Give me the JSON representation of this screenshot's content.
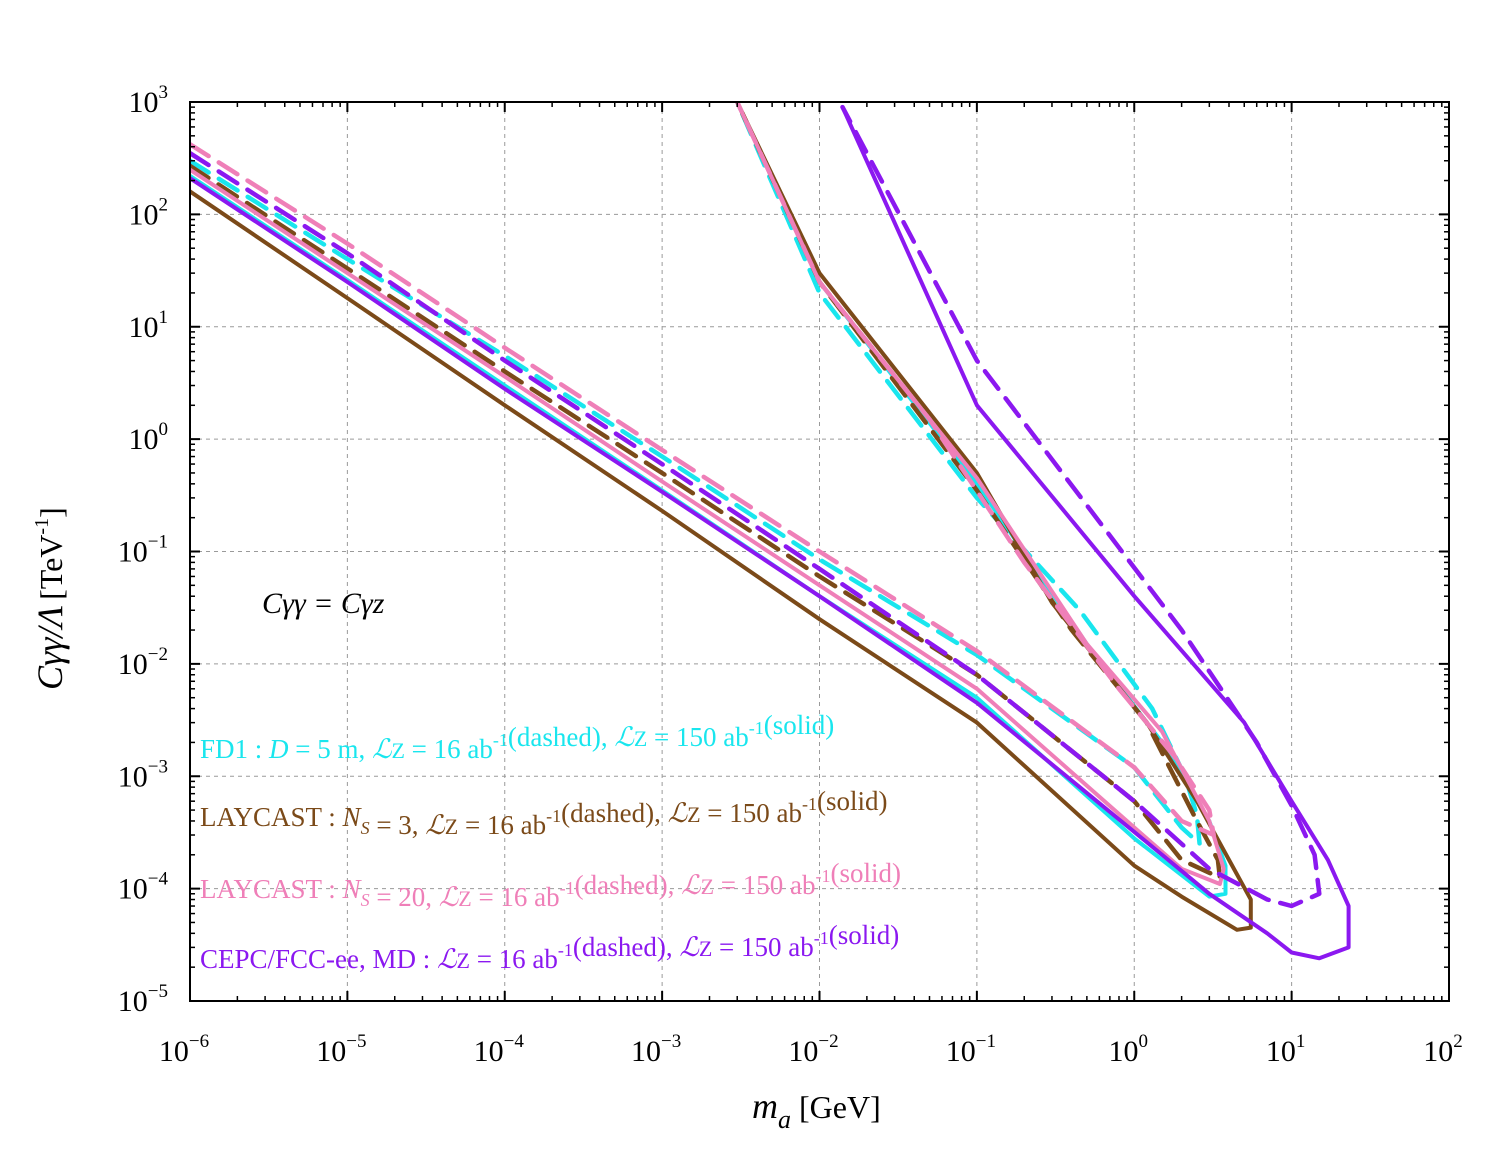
{
  "chart_data": {
    "type": "line",
    "xscale": "log",
    "yscale": "log",
    "xlim": [
      1e-06,
      100
    ],
    "ylim": [
      1e-05,
      1000
    ],
    "grid": true,
    "xlabel": {
      "main": "m",
      "sub": "a",
      "unit": "[GeV]"
    },
    "ylabel": {
      "main": "Cγγ/Λ",
      "unit": "[TeV",
      "unit_sup": "-1",
      "unit_close": "]"
    },
    "xticks": [
      {
        "base": "10",
        "exp": "−6"
      },
      {
        "base": "10",
        "exp": "−5"
      },
      {
        "base": "10",
        "exp": "−4"
      },
      {
        "base": "10",
        "exp": "−3"
      },
      {
        "base": "10",
        "exp": "−2"
      },
      {
        "base": "10",
        "exp": "−1"
      },
      {
        "base": "10",
        "exp": "0"
      },
      {
        "base": "10",
        "exp": "1"
      },
      {
        "base": "10",
        "exp": "2"
      }
    ],
    "yticks": [
      {
        "base": "10",
        "exp": "−5"
      },
      {
        "base": "10",
        "exp": "−4"
      },
      {
        "base": "10",
        "exp": "−3"
      },
      {
        "base": "10",
        "exp": "−2"
      },
      {
        "base": "10",
        "exp": "−1"
      },
      {
        "base": "10",
        "exp": "0"
      },
      {
        "base": "10",
        "exp": "1"
      },
      {
        "base": "10",
        "exp": "2"
      },
      {
        "base": "10",
        "exp": "3"
      }
    ],
    "annotation": "Cγγ = Cγz",
    "colors": {
      "cyan": "#19e6ee",
      "brown": "#7b4a19",
      "pink": "#ef7fb8",
      "violet": "#8b18f0"
    },
    "legend": [
      {
        "name": "FD1",
        "color": "#19e6ee",
        "text": "FD1 : D = 5 m,  ℒZ = 16 ab-1(dashed),  ℒZ = 150 ab-1(solid)"
      },
      {
        "name": "LAYCAST Ns=3",
        "color": "#7b4a19",
        "text": "LAYCAST : NS = 3, ℒZ = 16 ab-1(dashed),  ℒZ = 150 ab-1(solid)"
      },
      {
        "name": "LAYCAST Ns=20",
        "color": "#ef7fb8",
        "text": "LAYCAST : NS = 20, ℒZ = 16 ab-1(dashed), ℒZ = 150 ab-1(solid)"
      },
      {
        "name": "CEPC/FCC-ee MD",
        "color": "#8b18f0",
        "text": "CEPC/FCC-ee, MD :  ℒZ = 16 ab-1(dashed),  ℒZ = 150 ab-1(solid)"
      }
    ],
    "series": [
      {
        "name": "FD1 dashed (16 ab-1)",
        "color": "#19e6ee",
        "style": "dashed",
        "points": [
          [
            1e-06,
            300
          ],
          [
            1e-05,
            40
          ],
          [
            0.0001,
            5.5
          ],
          [
            0.001,
            0.7
          ],
          [
            0.01,
            0.085
          ],
          [
            0.1,
            0.012
          ],
          [
            1.0,
            0.0012
          ],
          [
            2.0,
            0.00035
          ],
          [
            2.6,
            0.00025
          ],
          [
            2.5,
            0.00045
          ],
          [
            2.1,
            0.001
          ],
          [
            1.3,
            0.004
          ],
          [
            0.45,
            0.03
          ],
          [
            0.1,
            0.3
          ],
          [
            0.01,
            20
          ],
          [
            0.003,
            1000
          ]
        ]
      },
      {
        "name": "FD1 solid (150 ab-1)",
        "color": "#19e6ee",
        "style": "solid",
        "points": [
          [
            1e-06,
            220
          ],
          [
            1e-05,
            26
          ],
          [
            0.0001,
            3
          ],
          [
            0.001,
            0.35
          ],
          [
            0.01,
            0.04
          ],
          [
            0.1,
            0.005
          ],
          [
            1.0,
            0.00028
          ],
          [
            3.0,
            8.5e-05
          ],
          [
            3.8,
            9e-05
          ],
          [
            3.8,
            0.00016
          ],
          [
            3.0,
            0.0004
          ],
          [
            1.5,
            0.002
          ],
          [
            0.5,
            0.015
          ],
          [
            0.1,
            0.4
          ],
          [
            0.01,
            25
          ],
          [
            0.003,
            1000
          ]
        ]
      },
      {
        "name": "LAYCAST Ns=3 dashed (16 ab-1)",
        "color": "#7b4a19",
        "style": "dashed",
        "points": [
          [
            1e-06,
            270
          ],
          [
            1e-05,
            33
          ],
          [
            0.0001,
            4
          ],
          [
            0.001,
            0.5
          ],
          [
            0.01,
            0.06
          ],
          [
            0.1,
            0.008
          ],
          [
            1.0,
            0.0006
          ],
          [
            2.0,
            0.00018
          ],
          [
            3.5,
            0.000125
          ],
          [
            3.4,
            0.00018
          ],
          [
            2.5,
            0.0004
          ],
          [
            1.2,
            0.003
          ],
          [
            0.4,
            0.02
          ],
          [
            0.1,
            0.35
          ],
          [
            0.01,
            25
          ],
          [
            0.003,
            1000
          ]
        ]
      },
      {
        "name": "LAYCAST Ns=3 solid (150 ab-1)",
        "color": "#7b4a19",
        "style": "solid",
        "points": [
          [
            1e-06,
            160
          ],
          [
            1e-05,
            18
          ],
          [
            0.0001,
            2
          ],
          [
            0.001,
            0.23
          ],
          [
            0.01,
            0.025
          ],
          [
            0.1,
            0.003
          ],
          [
            1.0,
            0.00016
          ],
          [
            2.0,
            8.5e-05
          ],
          [
            4.5,
            4.3e-05
          ],
          [
            5.5,
            4.5e-05
          ],
          [
            5.5,
            8e-05
          ],
          [
            4.0,
            0.00018
          ],
          [
            2.5,
            0.0006
          ],
          [
            1.2,
            0.003
          ],
          [
            0.3,
            0.035
          ],
          [
            0.1,
            0.5
          ],
          [
            0.01,
            30
          ],
          [
            0.003,
            1000
          ]
        ]
      },
      {
        "name": "LAYCAST Ns=20 dashed (16 ab-1)",
        "color": "#ef7fb8",
        "style": "dashed",
        "points": [
          [
            1e-06,
            420
          ],
          [
            1e-05,
            55
          ],
          [
            0.0001,
            6.5
          ],
          [
            0.001,
            0.8
          ],
          [
            0.01,
            0.1
          ],
          [
            0.1,
            0.013
          ],
          [
            1.0,
            0.0012
          ],
          [
            2.0,
            0.0004
          ],
          [
            3.2,
            0.0003
          ],
          [
            3.0,
            0.0005
          ],
          [
            1.8,
            0.0015
          ],
          [
            0.8,
            0.006
          ],
          [
            0.2,
            0.08
          ],
          [
            0.05,
            1.5
          ],
          [
            0.01,
            25
          ],
          [
            0.003,
            1000
          ]
        ]
      },
      {
        "name": "LAYCAST Ns=20 solid (150 ab-1)",
        "color": "#ef7fb8",
        "style": "solid",
        "points": [
          [
            1e-06,
            250
          ],
          [
            1e-05,
            30
          ],
          [
            0.0001,
            3.6
          ],
          [
            0.001,
            0.42
          ],
          [
            0.01,
            0.05
          ],
          [
            0.1,
            0.006
          ],
          [
            1.0,
            0.00035
          ],
          [
            2.0,
            0.00015
          ],
          [
            3.5,
            0.00011
          ],
          [
            3.7,
            0.00015
          ],
          [
            3.0,
            0.0004
          ],
          [
            1.5,
            0.0025
          ],
          [
            0.5,
            0.015
          ],
          [
            0.1,
            0.45
          ],
          [
            0.01,
            25
          ],
          [
            0.003,
            1000
          ]
        ]
      },
      {
        "name": "CEPC/FCC-ee MD dashed (16 ab-1)",
        "color": "#8b18f0",
        "style": "dashed",
        "points": [
          [
            1e-06,
            350
          ],
          [
            1e-05,
            45
          ],
          [
            0.0001,
            5
          ],
          [
            0.001,
            0.6
          ],
          [
            0.01,
            0.07
          ],
          [
            0.1,
            0.008
          ],
          [
            1.0,
            0.0006
          ],
          [
            3.0,
            0.00015
          ],
          [
            7.0,
            8e-05
          ],
          [
            10,
            7e-05
          ],
          [
            15,
            9e-05
          ],
          [
            14,
            0.0002
          ],
          [
            10,
            0.00055
          ],
          [
            6,
            0.002
          ],
          [
            2,
            0.02
          ],
          [
            0.1,
            5
          ],
          [
            0.014,
            900
          ]
        ]
      },
      {
        "name": "CEPC/FCC-ee MD solid (150 ab-1)",
        "color": "#8b18f0",
        "style": "solid",
        "points": [
          [
            1e-06,
            210
          ],
          [
            1e-05,
            25
          ],
          [
            0.0001,
            2.8
          ],
          [
            0.001,
            0.34
          ],
          [
            0.01,
            0.04
          ],
          [
            0.1,
            0.0045
          ],
          [
            1.0,
            0.00032
          ],
          [
            3.0,
            9e-05
          ],
          [
            7.0,
            4e-05
          ],
          [
            10,
            2.7e-05
          ],
          [
            15,
            2.4e-05
          ],
          [
            23,
            3e-05
          ],
          [
            23,
            7e-05
          ],
          [
            17,
            0.00018
          ],
          [
            10,
            0.0006
          ],
          [
            5,
            0.003
          ],
          [
            1,
            0.04
          ],
          [
            0.1,
            2
          ],
          [
            0.014,
            900
          ]
        ]
      }
    ]
  }
}
